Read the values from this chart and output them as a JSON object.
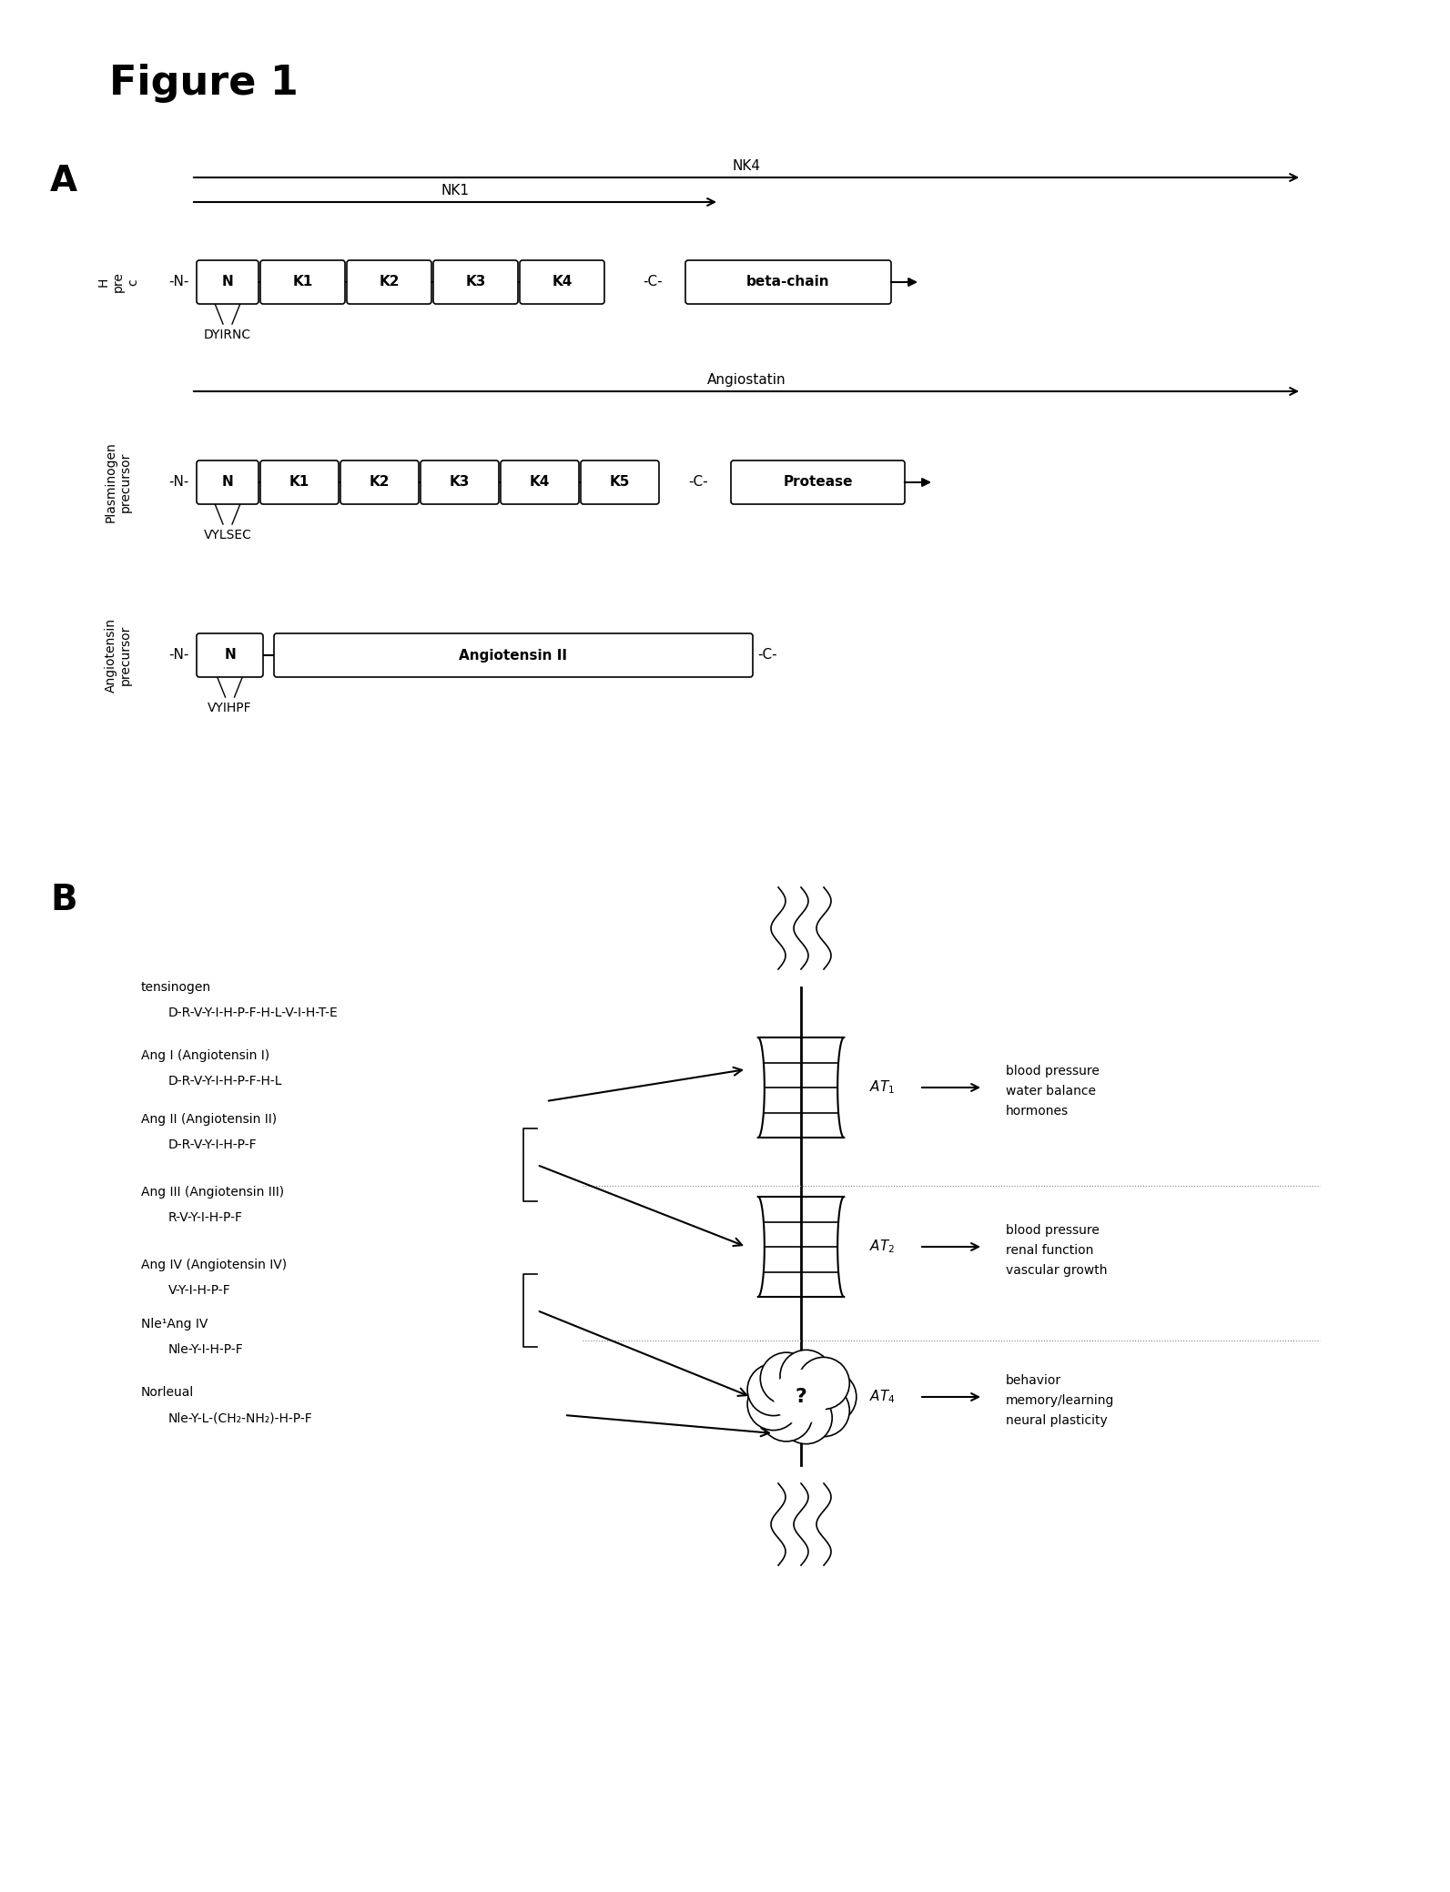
{
  "title": "Figure 1",
  "panel_A_label": "A",
  "panel_B_label": "B",
  "bg_color": "#ffffff",
  "text_color": "#000000",
  "hgf_nk4_label": "NK4",
  "hgf_nk1_label": "NK1",
  "hgf_label": "H\npre\nc",
  "hgf_domains": [
    "N",
    "K1",
    "K2",
    "K3",
    "K4"
  ],
  "hgf_beta": "beta-chain",
  "hgf_dyirnc": "DYIRNC",
  "plas_label": "Plasminogen\nprecursor",
  "plas_angiostatin": "Angiostatin",
  "plas_domains": [
    "N",
    "K1",
    "K2",
    "K3",
    "K4",
    "K5"
  ],
  "plas_protease": "Protease",
  "plas_vylsec": "VYLSEC",
  "angio_label": "Angiotensin\nprecursor",
  "angio_domains": [
    "N",
    "Angiotensin II"
  ],
  "angio_vyihpf": "VYIHPF",
  "ligand_names": [
    "tensinogen",
    "Ang I (Angiotensin I)",
    "Ang II (Angiotensin II)",
    "Ang III (Angiotensin III)",
    "Ang IV (Angiotensin IV)",
    "Nle¹Ang IV",
    "Norleual"
  ],
  "ligand_seqs": [
    "D-R-V-Y-I-H-P-F-H-L-V-I-H-T-E",
    "D-R-V-Y-I-H-P-F-H-L",
    "D-R-V-Y-I-H-P-F",
    "R-V-Y-I-H-P-F",
    "V-Y-I-H-P-F",
    "Nle-Y-I-H-P-F",
    "Nle-Y-L-(CH₂-NH₂)-H-P-F"
  ],
  "at_labels": [
    "AT₁",
    "AT₂",
    "AT₄"
  ],
  "at_effects": [
    [
      "blood pressure",
      "water balance",
      "hormones"
    ],
    [
      "blood pressure",
      "renal function",
      "vascular growth"
    ],
    [
      "behavior",
      "memory/learning",
      "neural plasticity"
    ]
  ]
}
